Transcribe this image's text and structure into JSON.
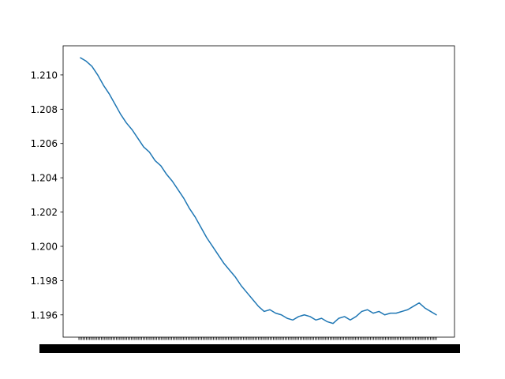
{
  "chart_data": {
    "type": "line",
    "title": "",
    "xlabel": "",
    "ylabel": "",
    "ylim": [
      1.1947,
      1.2117
    ],
    "y_ticks": [
      1.196,
      1.198,
      1.2,
      1.202,
      1.204,
      1.206,
      1.208,
      1.21
    ],
    "y_tick_labels": [
      "1.196",
      "1.198",
      "1.200",
      "1.202",
      "1.204",
      "1.206",
      "1.208",
      "1.210"
    ],
    "x_tick_count": 240,
    "x_ticks_note": "x tick labels are densely overlapping and unreadable",
    "grid": false,
    "line_color": "#1f77b4",
    "series": [
      {
        "values": [
          1.211,
          1.2108,
          1.2105,
          1.21,
          1.2094,
          1.2089,
          1.2083,
          1.2077,
          1.2072,
          1.2068,
          1.2063,
          1.2058,
          1.2055,
          1.205,
          1.2047,
          1.2042,
          1.2038,
          1.2033,
          1.2028,
          1.2022,
          1.2017,
          1.2011,
          1.2005,
          1.2,
          1.1995,
          1.199,
          1.1986,
          1.1982,
          1.1977,
          1.1973,
          1.1969,
          1.1965,
          1.1962,
          1.1963,
          1.1961,
          1.196,
          1.1958,
          1.1957,
          1.1959,
          1.196,
          1.1959,
          1.1957,
          1.1958,
          1.1956,
          1.1955,
          1.1958,
          1.1959,
          1.1957,
          1.1959,
          1.1962,
          1.1963,
          1.1961,
          1.1962,
          1.196,
          1.1961,
          1.1961,
          1.1962,
          1.1963,
          1.1965,
          1.1967,
          1.1964,
          1.1962,
          1.196
        ]
      }
    ]
  }
}
